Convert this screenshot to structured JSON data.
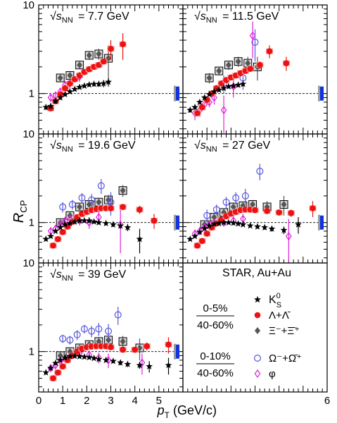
{
  "figure": {
    "y_axis_label": "R",
    "y_axis_label_sub": "CP",
    "x_axis_label": "p",
    "x_axis_label_sub": "T",
    "x_axis_unit": "(GeV/c)"
  },
  "legend": {
    "title": "STAR, Au+Au",
    "group1_ratio_top": "0-5%",
    "group1_ratio_bottom": "40-60%",
    "group2_ratio_top": "0-10%",
    "group2_ratio_bottom": "40-60%",
    "items": [
      {
        "key": "k0s",
        "label": "K",
        "sup": "0",
        "sub": "S"
      },
      {
        "key": "lambda",
        "label": "Λ+Λ̄"
      },
      {
        "key": "xi",
        "label": "Ξ⁻+Ξ̄⁺"
      },
      {
        "key": "omega",
        "label": "Ω⁻+Ω̄⁺"
      },
      {
        "key": "phi",
        "label": "φ"
      }
    ]
  },
  "colors": {
    "k0s": "#000000",
    "lambda": "#ee1111",
    "xi": "#555555",
    "omega": "#5555dd",
    "phi": "#dd22dd",
    "norm_band": "#1133dd",
    "syst_box": "#000000"
  },
  "chart_data": [
    {
      "type": "scatter",
      "panel": 1,
      "energy_label": "7.7 GeV",
      "energy_prefix": "√s",
      "energy_sub": "NN",
      "xlim": [
        0,
        6
      ],
      "ylim": [
        0.35,
        10
      ],
      "yscale": "log",
      "xticks_labeled": [],
      "yticks_labeled": [
        1,
        10
      ],
      "reference_line": 1,
      "series": [
        {
          "key": "k0s",
          "x": [
            0.3,
            0.5,
            0.7,
            0.9,
            1.1,
            1.3,
            1.5,
            1.7,
            1.9,
            2.1,
            2.3,
            2.5,
            2.7,
            2.9
          ],
          "y": [
            0.7,
            0.72,
            0.82,
            0.9,
            0.98,
            1.05,
            1.12,
            1.18,
            1.22,
            1.26,
            1.28,
            1.28,
            1.3,
            1.35
          ],
          "err": [
            0.05,
            0.05,
            0.05,
            0.05,
            0.05,
            0.05,
            0.05,
            0.06,
            0.06,
            0.07,
            0.08,
            0.09,
            0.12,
            0.15
          ]
        },
        {
          "key": "lambda",
          "x": [
            0.5,
            0.7,
            0.9,
            1.1,
            1.3,
            1.5,
            1.7,
            1.9,
            2.1,
            2.3,
            2.5,
            2.7,
            3.0,
            3.5
          ],
          "y": [
            0.68,
            0.82,
            0.98,
            1.15,
            1.3,
            1.45,
            1.6,
            1.75,
            1.88,
            2.0,
            2.1,
            2.3,
            3.2,
            3.6
          ],
          "err": [
            0.05,
            0.05,
            0.05,
            0.06,
            0.06,
            0.07,
            0.07,
            0.08,
            0.09,
            0.1,
            0.12,
            0.15,
            0.8,
            1.2
          ]
        },
        {
          "key": "xi",
          "x": [
            0.9,
            1.3,
            1.7,
            2.1,
            2.5,
            2.9
          ],
          "y": [
            1.5,
            1.6,
            2.1,
            2.7,
            2.8,
            2.5
          ],
          "err": [
            0.15,
            0.15,
            0.2,
            0.3,
            0.4,
            1.0
          ]
        },
        {
          "key": "phi",
          "x": [
            0.5,
            0.7,
            0.9,
            1.1,
            1.3,
            1.7
          ],
          "y": [
            0.9,
            0.95,
            1.05,
            1.25,
            1.3,
            1.55
          ],
          "err": [
            0.1,
            0.1,
            0.1,
            0.12,
            0.15,
            0.2
          ]
        }
      ]
    },
    {
      "type": "scatter",
      "panel": 2,
      "energy_label": "11.5 GeV",
      "energy_prefix": "√s",
      "energy_sub": "NN",
      "xlim": [
        0,
        6
      ],
      "ylim": [
        0.35,
        10
      ],
      "yscale": "log",
      "reference_line": 1,
      "series": [
        {
          "key": "k0s",
          "x": [
            0.3,
            0.5,
            0.7,
            0.9,
            1.1,
            1.3,
            1.5,
            1.7,
            1.9,
            2.1,
            2.3,
            2.5
          ],
          "y": [
            0.65,
            0.7,
            0.8,
            0.9,
            0.98,
            1.05,
            1.1,
            1.15,
            1.2,
            1.22,
            1.25,
            1.28
          ],
          "err": [
            0.04,
            0.04,
            0.04,
            0.04,
            0.04,
            0.05,
            0.05,
            0.05,
            0.06,
            0.06,
            0.07,
            0.08
          ]
        },
        {
          "key": "lambda",
          "x": [
            0.6,
            0.8,
            1.0,
            1.2,
            1.4,
            1.6,
            1.8,
            2.0,
            2.2,
            2.4,
            2.6,
            2.8,
            3.2,
            3.6,
            4.3
          ],
          "y": [
            0.6,
            0.7,
            0.85,
            1.0,
            1.15,
            1.3,
            1.42,
            1.52,
            1.6,
            1.7,
            1.8,
            1.9,
            2.1,
            3.0,
            2.2
          ],
          "err": [
            0.04,
            0.04,
            0.05,
            0.05,
            0.06,
            0.06,
            0.07,
            0.07,
            0.08,
            0.09,
            0.1,
            0.12,
            0.2,
            0.5,
            0.4
          ]
        },
        {
          "key": "xi",
          "x": [
            1.1,
            1.5,
            1.9,
            2.3,
            2.7,
            3.1
          ],
          "y": [
            1.5,
            1.8,
            2.1,
            2.3,
            2.2,
            2.0
          ],
          "err": [
            0.2,
            0.2,
            0.25,
            0.3,
            0.4,
            0.6
          ]
        },
        {
          "key": "omega",
          "x": [
            1.7,
            2.5,
            3.0
          ],
          "y": [
            1.3,
            1.5,
            3.8
          ],
          "err": [
            0.3,
            0.4,
            1.5
          ]
        },
        {
          "key": "phi",
          "x": [
            0.5,
            0.7,
            0.9,
            1.1,
            1.3,
            1.7,
            2.1,
            2.9
          ],
          "y": [
            0.6,
            0.65,
            0.75,
            0.8,
            0.9,
            0.65,
            1.2,
            4.5
          ],
          "err": [
            0.1,
            0.1,
            0.1,
            0.1,
            0.15,
            0.3,
            0.3,
            2.0
          ]
        }
      ]
    },
    {
      "type": "scatter",
      "panel": 3,
      "energy_label": "19.6 GeV",
      "energy_prefix": "√s",
      "energy_sub": "NN",
      "xlim": [
        0,
        6
      ],
      "ylim": [
        0.35,
        10
      ],
      "yscale": "log",
      "reference_line": 1,
      "series": [
        {
          "key": "k0s",
          "x": [
            0.3,
            0.5,
            0.7,
            0.9,
            1.1,
            1.3,
            1.5,
            1.7,
            1.9,
            2.1,
            2.3,
            2.5,
            2.8,
            3.1,
            3.4,
            3.7,
            4.2
          ],
          "y": [
            0.65,
            0.7,
            0.8,
            0.88,
            0.95,
            0.98,
            1.02,
            1.05,
            1.05,
            1.05,
            1.02,
            1.0,
            0.98,
            0.95,
            0.92,
            0.88,
            0.65
          ],
          "err": [
            0.03,
            0.03,
            0.03,
            0.03,
            0.03,
            0.03,
            0.03,
            0.03,
            0.03,
            0.04,
            0.04,
            0.04,
            0.05,
            0.06,
            0.07,
            0.08,
            0.2
          ]
        },
        {
          "key": "lambda",
          "x": [
            0.6,
            0.8,
            1.0,
            1.2,
            1.4,
            1.6,
            1.8,
            2.0,
            2.2,
            2.4,
            2.6,
            2.8,
            3.0,
            3.5,
            4.2,
            4.8
          ],
          "y": [
            0.55,
            0.65,
            0.78,
            0.9,
            1.02,
            1.15,
            1.25,
            1.32,
            1.38,
            1.42,
            1.45,
            1.45,
            1.45,
            1.5,
            1.4,
            1.05
          ],
          "err": [
            0.03,
            0.03,
            0.04,
            0.04,
            0.05,
            0.05,
            0.05,
            0.05,
            0.06,
            0.06,
            0.06,
            0.07,
            0.08,
            0.1,
            0.15,
            0.2
          ]
        },
        {
          "key": "xi",
          "x": [
            0.9,
            1.3,
            1.7,
            2.1,
            2.5,
            2.9,
            3.5
          ],
          "y": [
            1.0,
            1.2,
            1.5,
            1.6,
            1.7,
            1.8,
            2.3
          ],
          "err": [
            0.1,
            0.1,
            0.12,
            0.15,
            0.2,
            0.25,
            0.35
          ]
        },
        {
          "key": "omega",
          "x": [
            1.0,
            1.4,
            1.8,
            2.2,
            2.6,
            3.0
          ],
          "y": [
            1.5,
            1.6,
            1.9,
            1.8,
            2.6,
            1.7
          ],
          "err": [
            0.2,
            0.2,
            0.25,
            0.3,
            0.5,
            0.5
          ]
        },
        {
          "key": "phi",
          "x": [
            0.5,
            0.7,
            0.9,
            1.1,
            1.3,
            1.7,
            2.1,
            2.5,
            3.4
          ],
          "y": [
            0.8,
            0.85,
            0.95,
            1.05,
            1.1,
            1.05,
            1.0,
            1.15,
            0.95
          ],
          "err": [
            0.08,
            0.08,
            0.08,
            0.1,
            0.1,
            0.12,
            0.15,
            0.2,
            0.5
          ]
        }
      ]
    },
    {
      "type": "scatter",
      "panel": 4,
      "energy_label": "27 GeV",
      "energy_prefix": "√s",
      "energy_sub": "NN",
      "xlim": [
        0,
        6
      ],
      "ylim": [
        0.35,
        10
      ],
      "yscale": "log",
      "reference_line": 1,
      "series": [
        {
          "key": "k0s",
          "x": [
            0.3,
            0.5,
            0.7,
            0.9,
            1.1,
            1.3,
            1.5,
            1.7,
            1.9,
            2.1,
            2.3,
            2.5,
            2.8,
            3.1,
            3.4,
            3.7,
            4.2,
            4.8
          ],
          "y": [
            0.65,
            0.7,
            0.78,
            0.86,
            0.92,
            0.96,
            0.98,
            1.0,
            1.0,
            0.99,
            0.97,
            0.95,
            0.92,
            0.9,
            0.88,
            0.85,
            0.82,
            0.95
          ],
          "err": [
            0.03,
            0.03,
            0.03,
            0.03,
            0.03,
            0.03,
            0.03,
            0.03,
            0.03,
            0.03,
            0.03,
            0.04,
            0.04,
            0.05,
            0.05,
            0.06,
            0.08,
            0.2
          ]
        },
        {
          "key": "lambda",
          "x": [
            0.6,
            0.8,
            1.0,
            1.2,
            1.4,
            1.6,
            1.8,
            2.0,
            2.2,
            2.4,
            2.6,
            2.8,
            3.0,
            3.5,
            4.0,
            4.5,
            5.4
          ],
          "y": [
            0.55,
            0.62,
            0.75,
            0.88,
            0.98,
            1.08,
            1.18,
            1.26,
            1.32,
            1.38,
            1.4,
            1.4,
            1.38,
            1.35,
            1.3,
            1.28,
            1.45
          ],
          "err": [
            0.03,
            0.03,
            0.03,
            0.04,
            0.04,
            0.04,
            0.05,
            0.05,
            0.05,
            0.05,
            0.06,
            0.06,
            0.07,
            0.08,
            0.1,
            0.12,
            0.3
          ]
        },
        {
          "key": "xi",
          "x": [
            0.9,
            1.3,
            1.7,
            2.1,
            2.5,
            2.9,
            3.5,
            4.2
          ],
          "y": [
            0.95,
            1.15,
            1.3,
            1.5,
            1.55,
            1.6,
            1.5,
            1.6
          ],
          "err": [
            0.08,
            0.1,
            0.1,
            0.12,
            0.15,
            0.2,
            0.25,
            0.4
          ]
        },
        {
          "key": "omega",
          "x": [
            1.0,
            1.4,
            1.8,
            2.2,
            2.6,
            3.2
          ],
          "y": [
            1.2,
            1.4,
            1.7,
            1.9,
            2.0,
            3.8
          ],
          "err": [
            0.2,
            0.2,
            0.25,
            0.3,
            0.4,
            0.8
          ]
        },
        {
          "key": "phi",
          "x": [
            0.5,
            0.7,
            0.9,
            1.1,
            1.3,
            1.7,
            2.1,
            2.5,
            4.4
          ],
          "y": [
            0.75,
            0.8,
            0.88,
            0.95,
            1.0,
            1.0,
            1.05,
            1.1,
            0.7
          ],
          "err": [
            0.08,
            0.08,
            0.08,
            0.08,
            0.1,
            0.1,
            0.12,
            0.15,
            0.4
          ]
        }
      ]
    },
    {
      "type": "scatter",
      "panel": 5,
      "energy_label": "39 GeV",
      "energy_prefix": "√s",
      "energy_sub": "NN",
      "xlim": [
        0,
        6
      ],
      "ylim": [
        0.35,
        10
      ],
      "yscale": "log",
      "xticks_labeled": [
        0,
        1,
        2,
        3,
        4,
        5
      ],
      "reference_line": 1,
      "series": [
        {
          "key": "k0s",
          "x": [
            0.3,
            0.5,
            0.7,
            0.9,
            1.1,
            1.3,
            1.5,
            1.7,
            1.9,
            2.1,
            2.3,
            2.5,
            2.8,
            3.1,
            3.4,
            3.7,
            4.2,
            4.6,
            5.4
          ],
          "y": [
            0.58,
            0.65,
            0.74,
            0.8,
            0.85,
            0.88,
            0.89,
            0.88,
            0.87,
            0.86,
            0.84,
            0.82,
            0.8,
            0.78,
            0.75,
            0.72,
            0.7,
            0.68,
            0.7
          ],
          "err": [
            0.03,
            0.03,
            0.03,
            0.03,
            0.03,
            0.03,
            0.03,
            0.03,
            0.03,
            0.03,
            0.03,
            0.03,
            0.04,
            0.04,
            0.05,
            0.05,
            0.06,
            0.1,
            0.15
          ]
        },
        {
          "key": "lambda",
          "x": [
            0.6,
            0.8,
            1.0,
            1.2,
            1.4,
            1.6,
            1.8,
            2.0,
            2.2,
            2.4,
            2.6,
            2.8,
            3.0,
            3.5,
            4.0,
            4.5,
            5.4
          ],
          "y": [
            0.5,
            0.58,
            0.68,
            0.8,
            0.9,
            1.0,
            1.08,
            1.12,
            1.14,
            1.15,
            1.15,
            1.15,
            1.12,
            1.05,
            1.05,
            1.15,
            1.2
          ],
          "err": [
            0.03,
            0.03,
            0.03,
            0.03,
            0.04,
            0.04,
            0.04,
            0.04,
            0.05,
            0.05,
            0.05,
            0.05,
            0.06,
            0.07,
            0.08,
            0.12,
            0.25
          ]
        },
        {
          "key": "xi",
          "x": [
            0.9,
            1.3,
            1.7,
            2.1,
            2.5,
            2.9,
            3.5,
            4.2
          ],
          "y": [
            0.9,
            1.0,
            1.1,
            1.2,
            1.3,
            1.35,
            1.3,
            1.1
          ],
          "err": [
            0.07,
            0.08,
            0.08,
            0.1,
            0.12,
            0.15,
            0.2,
            0.3
          ]
        },
        {
          "key": "omega",
          "x": [
            1.0,
            1.3,
            1.6,
            1.9,
            2.2,
            2.5,
            2.9,
            3.3
          ],
          "y": [
            1.4,
            1.35,
            1.55,
            1.8,
            1.7,
            1.8,
            1.7,
            2.6
          ],
          "err": [
            0.15,
            0.15,
            0.2,
            0.2,
            0.25,
            0.3,
            0.35,
            0.6
          ]
        },
        {
          "key": "phi",
          "x": [
            0.5,
            0.7,
            0.9,
            1.1,
            1.3,
            1.7,
            2.1,
            2.5,
            2.9,
            4.3
          ],
          "y": [
            0.65,
            0.7,
            0.78,
            0.82,
            0.88,
            0.95,
            0.92,
            0.85,
            0.8,
            0.75
          ],
          "err": [
            0.06,
            0.06,
            0.06,
            0.07,
            0.07,
            0.08,
            0.1,
            0.12,
            0.15,
            0.2
          ]
        }
      ]
    }
  ]
}
